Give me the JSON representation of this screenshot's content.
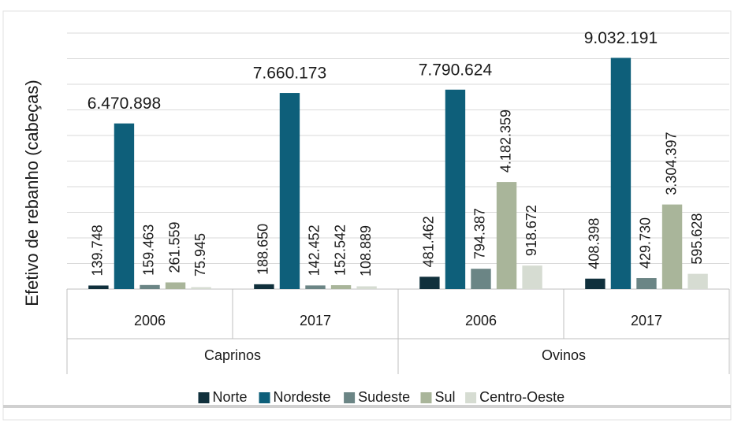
{
  "chart_data": {
    "type": "bar",
    "y_label": "Efetivo de rebanho (cabeças)",
    "groups": [
      {
        "label": "Caprinos",
        "categories": [
          "2006",
          "2017"
        ]
      },
      {
        "label": "Ovinos",
        "categories": [
          "2006",
          "2017"
        ]
      }
    ],
    "series": [
      {
        "name": "Norte",
        "color": "#10303c",
        "values": [
          139748,
          188650,
          481462,
          408398
        ],
        "value_labels": [
          "139.748",
          "188.650",
          "481.462",
          "408.398"
        ]
      },
      {
        "name": "Nordeste",
        "color": "#0e5f7a",
        "values": [
          6470898,
          7660173,
          7790624,
          9032191
        ],
        "value_labels": [
          "6.470.898",
          "7.660.173",
          "7.790.624",
          "9.032.191"
        ]
      },
      {
        "name": "Sudeste",
        "color": "#6b8585",
        "values": [
          159463,
          142452,
          794387,
          429730
        ],
        "value_labels": [
          "159.463",
          "142.452",
          "794.387",
          "429.730"
        ]
      },
      {
        "name": "Sul",
        "color": "#a9b59a",
        "values": [
          261559,
          152542,
          4182359,
          3304397
        ],
        "value_labels": [
          "261.559",
          "152.542",
          "4.182.359",
          "3.304.397"
        ]
      },
      {
        "name": "Centro-Oeste",
        "color": "#d6dcd2",
        "values": [
          75945,
          108889,
          918672,
          595628
        ],
        "value_labels": [
          "75.945",
          "108.889",
          "918.672",
          "595.628"
        ]
      }
    ],
    "ylim": [
      0,
      10000000
    ],
    "yticks": [
      0,
      1000000,
      2000000,
      3000000,
      4000000,
      5000000,
      6000000,
      7000000,
      8000000,
      9000000,
      10000000
    ],
    "grid": true,
    "legend": "bottom"
  }
}
